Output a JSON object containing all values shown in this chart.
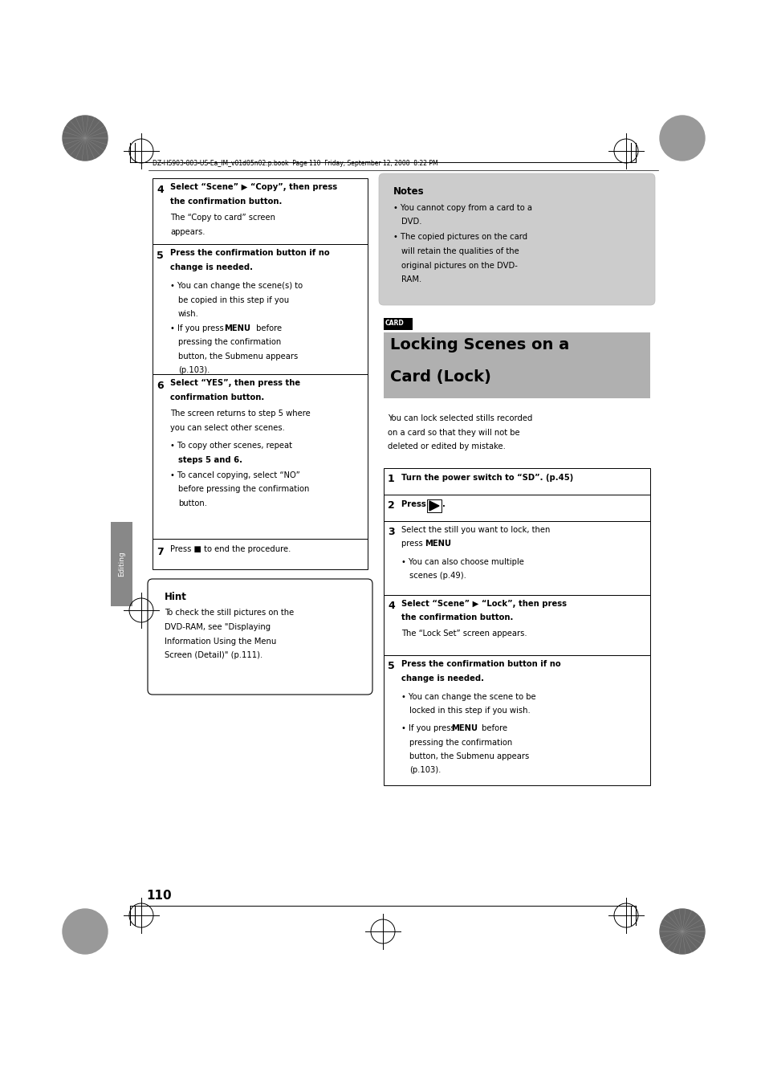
{
  "bg_color": "#ffffff",
  "page_width": 9.54,
  "page_height": 13.5,
  "header_text": "DZ-HS903-803-US-Ea_IM_v01d05n02.p.book  Page 110  Friday, September 12, 2008  8:22 PM",
  "page_number": "110",
  "section_label": "Editing"
}
